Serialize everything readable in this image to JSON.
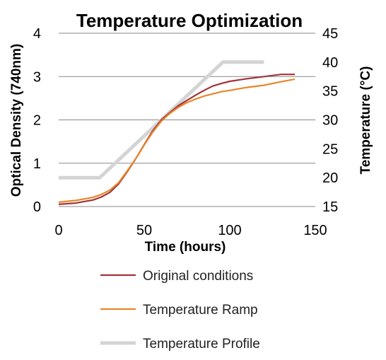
{
  "chart_data": {
    "type": "line",
    "title": "Temperature Optimization",
    "xlabel": "Time (hours)",
    "ylabel": "Optical Density (740nm)",
    "y2label": "Temperature (°C)",
    "xlim": [
      0,
      150
    ],
    "ylim": [
      0,
      4
    ],
    "y2lim": [
      15,
      45
    ],
    "xticks": [
      "0",
      "50",
      "100",
      "150"
    ],
    "yticks": [
      "0",
      "1",
      "2",
      "3",
      "4"
    ],
    "y2ticks": [
      "15",
      "20",
      "25",
      "30",
      "35",
      "40",
      "45"
    ],
    "grid": "horizontal",
    "legend_position": "bottom",
    "series": [
      {
        "name": "Original conditions",
        "axis": "left",
        "color": "#a0353a",
        "x": [
          0,
          10,
          20,
          25,
          30,
          35,
          40,
          45,
          50,
          55,
          60,
          65,
          70,
          75,
          80,
          85,
          90,
          95,
          100,
          110,
          120,
          130,
          138
        ],
        "y": [
          0.05,
          0.08,
          0.15,
          0.22,
          0.33,
          0.52,
          0.8,
          1.1,
          1.43,
          1.75,
          2.0,
          2.17,
          2.33,
          2.45,
          2.57,
          2.68,
          2.78,
          2.84,
          2.89,
          2.95,
          3.0,
          3.05,
          3.05
        ]
      },
      {
        "name": "Temperature Ramp",
        "axis": "left",
        "color": "#e8862a",
        "x": [
          0,
          10,
          20,
          25,
          30,
          35,
          40,
          45,
          50,
          55,
          60,
          65,
          70,
          75,
          80,
          85,
          90,
          95,
          100,
          110,
          120,
          130,
          138
        ],
        "y": [
          0.1,
          0.14,
          0.21,
          0.28,
          0.38,
          0.55,
          0.82,
          1.1,
          1.42,
          1.72,
          1.97,
          2.15,
          2.29,
          2.4,
          2.48,
          2.55,
          2.6,
          2.65,
          2.68,
          2.75,
          2.8,
          2.88,
          2.94
        ]
      },
      {
        "name": "Temperature Profile",
        "axis": "right",
        "color": "#d4d4d4",
        "x": [
          0,
          24,
          96,
          120
        ],
        "y": [
          20,
          20,
          40,
          40
        ]
      }
    ]
  }
}
